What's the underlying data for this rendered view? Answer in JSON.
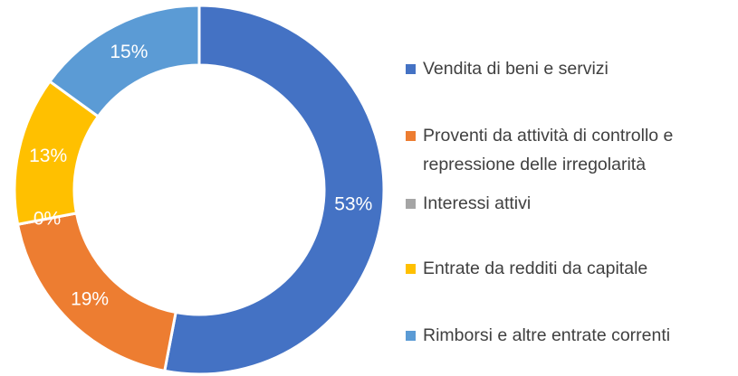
{
  "chart_data": {
    "type": "donut",
    "categories": [
      "Vendita di beni e servizi",
      "Proventi da attività di controllo e repressione delle irregolarità",
      "Interessi attivi",
      "Entrate da redditi da capitale",
      "Rimborsi e altre entrate correnti"
    ],
    "values": [
      53,
      19,
      0,
      13,
      15
    ],
    "value_labels": [
      "53%",
      "19%",
      "0%",
      "13%",
      "15%"
    ],
    "colors": [
      "#4472c4",
      "#ed7d31",
      "#a5a5a5",
      "#ffc000",
      "#5b9bd5"
    ],
    "legend": "right"
  }
}
